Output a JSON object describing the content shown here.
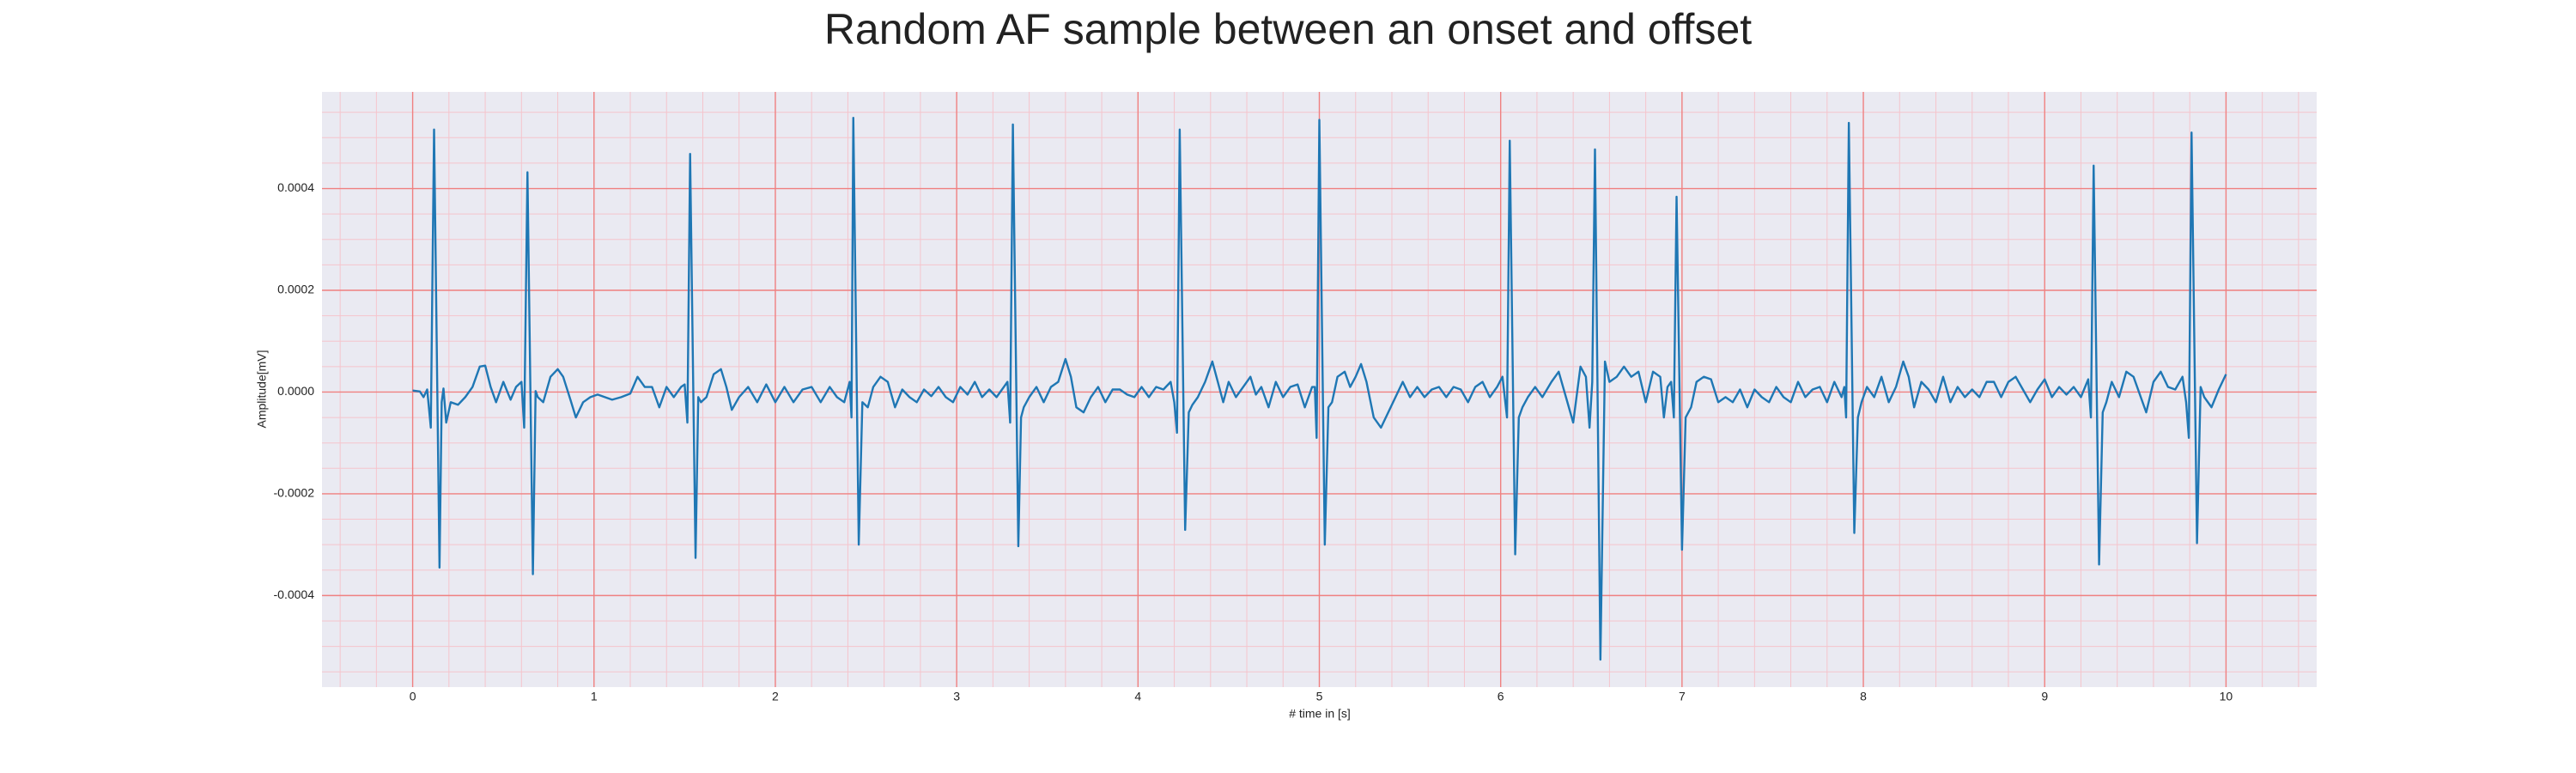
{
  "chart_data": {
    "type": "line",
    "title": "Random AF sample between an onset and offset",
    "x_label": "# time in [s]",
    "y_label": "Amplitude[mV]",
    "color": "#1f77b4",
    "background": "#eaeaf2",
    "major_grid_color": "#f08080",
    "minor_grid_color": "#f5c4cc",
    "grid": true,
    "xlim": [
      -0.5,
      10.5
    ],
    "ylim": [
      -0.00058,
      0.00059
    ],
    "xticks": [
      0,
      1,
      2,
      3,
      4,
      5,
      6,
      7,
      8,
      9,
      10
    ],
    "yticks": [
      -0.0004,
      -0.0002,
      {
        "value": 0,
        "label": "0.0000"
      },
      0.0002,
      0.0004
    ],
    "xminorticks": [
      -0.4,
      -0.2,
      0.2,
      0.4,
      0.6,
      0.8,
      1.2,
      1.4,
      1.6,
      1.8,
      2.2,
      2.4,
      2.6,
      2.8,
      3.2,
      3.4,
      3.6,
      3.8,
      4.2,
      4.4,
      4.6,
      4.8,
      5.2,
      5.4,
      5.6,
      5.8,
      6.2,
      6.4,
      6.6,
      6.8,
      7.2,
      7.4,
      7.6,
      7.8,
      8.2,
      8.4,
      8.6,
      8.8,
      9.2,
      9.4,
      9.6,
      9.8,
      10.2,
      10.4
    ],
    "yminorticks": [
      -0.00055,
      -0.0005,
      -0.00045,
      -0.00035,
      -0.0003,
      -0.00025,
      -0.00015,
      -0.0001,
      -5e-05,
      5e-05,
      0.0001,
      0.00015,
      0.00025,
      0.0003,
      0.00035,
      0.00045,
      0.0005,
      0.00055
    ],
    "x": [
      0,
      0.04,
      0.06,
      0.08,
      0.1,
      0.118,
      0.148,
      0.16,
      0.17,
      0.185,
      0.21,
      0.25,
      0.29,
      0.33,
      0.37,
      0.4,
      0.43,
      0.46,
      0.5,
      0.54,
      0.57,
      0.6,
      0.615,
      0.633,
      0.663,
      0.678,
      0.69,
      0.72,
      0.76,
      0.8,
      0.83,
      0.87,
      0.9,
      0.94,
      0.98,
      1.02,
      1.06,
      1.1,
      1.15,
      1.2,
      1.24,
      1.28,
      1.32,
      1.36,
      1.4,
      1.44,
      1.48,
      1.5,
      1.515,
      1.53,
      1.56,
      1.575,
      1.59,
      1.62,
      1.66,
      1.7,
      1.73,
      1.76,
      1.8,
      1.85,
      1.9,
      1.95,
      2.0,
      2.05,
      2.1,
      2.15,
      2.2,
      2.25,
      2.3,
      2.34,
      2.38,
      2.41,
      2.42,
      2.43,
      2.46,
      2.48,
      2.51,
      2.54,
      2.58,
      2.62,
      2.66,
      2.7,
      2.74,
      2.78,
      2.82,
      2.86,
      2.9,
      2.94,
      2.98,
      3.02,
      3.06,
      3.1,
      3.14,
      3.18,
      3.22,
      3.26,
      3.28,
      3.295,
      3.31,
      3.34,
      3.355,
      3.37,
      3.4,
      3.44,
      3.48,
      3.52,
      3.56,
      3.6,
      3.63,
      3.66,
      3.7,
      3.74,
      3.78,
      3.82,
      3.86,
      3.9,
      3.94,
      3.98,
      4.02,
      4.06,
      4.1,
      4.14,
      4.18,
      4.2,
      4.215,
      4.23,
      4.26,
      4.28,
      4.3,
      4.33,
      4.37,
      4.41,
      4.44,
      4.47,
      4.5,
      4.54,
      4.58,
      4.62,
      4.65,
      4.68,
      4.72,
      4.76,
      4.8,
      4.84,
      4.88,
      4.92,
      4.96,
      4.975,
      4.985,
      5.0,
      5.03,
      5.05,
      5.07,
      5.1,
      5.14,
      5.17,
      5.2,
      5.23,
      5.26,
      5.3,
      5.34,
      5.38,
      5.42,
      5.46,
      5.5,
      5.54,
      5.58,
      5.62,
      5.66,
      5.7,
      5.74,
      5.78,
      5.82,
      5.86,
      5.9,
      5.94,
      5.98,
      6.01,
      6.035,
      6.05,
      6.08,
      6.1,
      6.12,
      6.15,
      6.19,
      6.23,
      6.28,
      6.32,
      6.36,
      6.4,
      6.44,
      6.47,
      6.49,
      6.505,
      6.52,
      6.55,
      6.575,
      6.6,
      6.64,
      6.68,
      6.72,
      6.76,
      6.8,
      6.84,
      6.88,
      6.9,
      6.92,
      6.94,
      6.955,
      6.97,
      7.0,
      7.02,
      7.05,
      7.08,
      7.12,
      7.16,
      7.2,
      7.24,
      7.28,
      7.32,
      7.36,
      7.4,
      7.44,
      7.48,
      7.52,
      7.56,
      7.6,
      7.64,
      7.68,
      7.72,
      7.76,
      7.8,
      7.84,
      7.88,
      7.895,
      7.905,
      7.92,
      7.95,
      7.97,
      7.99,
      8.02,
      8.06,
      8.1,
      8.14,
      8.18,
      8.22,
      8.25,
      8.28,
      8.32,
      8.36,
      8.4,
      8.44,
      8.48,
      8.52,
      8.56,
      8.6,
      8.64,
      8.68,
      8.72,
      8.76,
      8.8,
      8.84,
      8.88,
      8.92,
      8.96,
      9.0,
      9.04,
      9.08,
      9.12,
      9.16,
      9.2,
      9.24,
      9.255,
      9.27,
      9.3,
      9.32,
      9.34,
      9.37,
      9.41,
      9.45,
      9.49,
      9.53,
      9.56,
      9.6,
      9.64,
      9.68,
      9.72,
      9.76,
      9.78,
      9.795,
      9.81,
      9.84,
      9.86,
      9.88,
      9.92,
      9.96,
      10.0
    ],
    "values": [
      3e-06,
      1e-06,
      -1e-05,
      5e-06,
      -7e-05,
      0.000516,
      -0.000345,
      -2e-05,
      7e-06,
      -6e-05,
      -2e-05,
      -2.5e-05,
      -1e-05,
      1e-05,
      5e-05,
      5.2e-05,
      1e-05,
      -2e-05,
      2e-05,
      -1.5e-05,
      1e-05,
      2e-05,
      -7e-05,
      0.000432,
      -0.000358,
      2e-06,
      -1e-05,
      -2e-05,
      3e-05,
      4.5e-05,
      3e-05,
      -1.5e-05,
      -5e-05,
      -2e-05,
      -1e-05,
      -5e-06,
      -1e-05,
      -1.5e-05,
      -1e-05,
      -3e-06,
      3e-05,
      1e-05,
      1e-05,
      -3e-05,
      1e-05,
      -1e-05,
      1e-05,
      1.5e-05,
      -6e-05,
      0.000468,
      -0.000326,
      -1e-05,
      -2e-05,
      -1e-05,
      3.5e-05,
      4.5e-05,
      1e-05,
      -3.5e-05,
      -1e-05,
      1e-05,
      -2e-05,
      1.5e-05,
      -2e-05,
      1e-05,
      -2e-05,
      5e-06,
      1e-05,
      -2e-05,
      1e-05,
      -1e-05,
      -2e-05,
      2e-05,
      -5e-05,
      0.000539,
      -0.0003,
      -2e-05,
      -3e-05,
      1e-05,
      3e-05,
      2e-05,
      -3e-05,
      5e-06,
      -1e-05,
      -2e-05,
      5e-06,
      -8e-06,
      1e-05,
      -1e-05,
      -2e-05,
      1e-05,
      -5e-06,
      2e-05,
      -1e-05,
      5e-06,
      -1e-05,
      1e-05,
      2e-05,
      -6e-05,
      0.000526,
      -0.000303,
      -5e-05,
      -3e-05,
      -1e-05,
      1e-05,
      -2e-05,
      1e-05,
      2e-05,
      6.5e-05,
      3e-05,
      -3e-05,
      -4e-05,
      -1e-05,
      1e-05,
      -2e-05,
      5e-06,
      5e-06,
      -5e-06,
      -1e-05,
      1e-05,
      -1e-05,
      1e-05,
      5e-06,
      2e-05,
      -2e-05,
      -8e-05,
      0.000516,
      -0.000271,
      -4e-05,
      -2.5e-05,
      -1e-05,
      2e-05,
      6e-05,
      2e-05,
      -2e-05,
      2e-05,
      -1e-05,
      1e-05,
      3e-05,
      -5e-06,
      1e-05,
      -3e-05,
      2e-05,
      -1e-05,
      1e-05,
      1.5e-05,
      -3e-05,
      1e-05,
      1e-05,
      -9e-05,
      0.000535,
      -0.0003,
      -3e-05,
      -2e-05,
      3e-05,
      4e-05,
      1e-05,
      3e-05,
      5.5e-05,
      2e-05,
      -5e-05,
      -7e-05,
      -4e-05,
      -1e-05,
      2e-05,
      -1e-05,
      1e-05,
      -1e-05,
      5e-06,
      1e-05,
      -1e-05,
      1e-05,
      5e-06,
      -2e-05,
      1e-05,
      2e-05,
      -1e-05,
      1e-05,
      3e-05,
      -5e-05,
      0.000494,
      -0.000319,
      -5e-05,
      -3e-05,
      -1e-05,
      1e-05,
      -1e-05,
      2e-05,
      4e-05,
      -1e-05,
      -6e-05,
      5e-05,
      3e-05,
      -7e-05,
      2e-05,
      0.000477,
      -0.000526,
      6e-05,
      2e-05,
      3e-05,
      5e-05,
      3e-05,
      4e-05,
      -2e-05,
      4e-05,
      3e-05,
      -5e-05,
      1e-05,
      2e-05,
      -5e-05,
      0.000384,
      -0.00031,
      -5e-05,
      -3e-05,
      2e-05,
      3e-05,
      2.5e-05,
      -2e-05,
      -1e-05,
      -2e-05,
      5e-06,
      -3e-05,
      5e-06,
      -1e-05,
      -2e-05,
      1e-05,
      -1e-05,
      -2e-05,
      2e-05,
      -1e-05,
      5e-06,
      1e-05,
      -2e-05,
      2e-05,
      -1e-05,
      1e-05,
      -5e-05,
      0.000529,
      -0.000277,
      -5e-05,
      -2e-05,
      1e-05,
      -1e-05,
      3e-05,
      -2e-05,
      1e-05,
      6e-05,
      3e-05,
      -3e-05,
      2e-05,
      5e-06,
      -2e-05,
      3e-05,
      -2e-05,
      1e-05,
      -1e-05,
      5e-06,
      -1e-05,
      2e-05,
      2e-05,
      -1e-05,
      2e-05,
      3e-05,
      5e-06,
      -2e-05,
      5e-06,
      2.5e-05,
      -1e-05,
      1e-05,
      -5e-06,
      1e-05,
      -1e-05,
      2.5e-05,
      -5e-05,
      0.000445,
      -0.000339,
      -4e-05,
      -2e-05,
      2e-05,
      -1e-05,
      4e-05,
      3e-05,
      -1e-05,
      -4e-05,
      2e-05,
      4e-05,
      1e-05,
      5e-06,
      3e-05,
      -2e-05,
      -9e-05,
      0.00051,
      -0.000297,
      1e-05,
      -1e-05,
      -3e-05,
      5e-06,
      3.5e-05
    ]
  }
}
